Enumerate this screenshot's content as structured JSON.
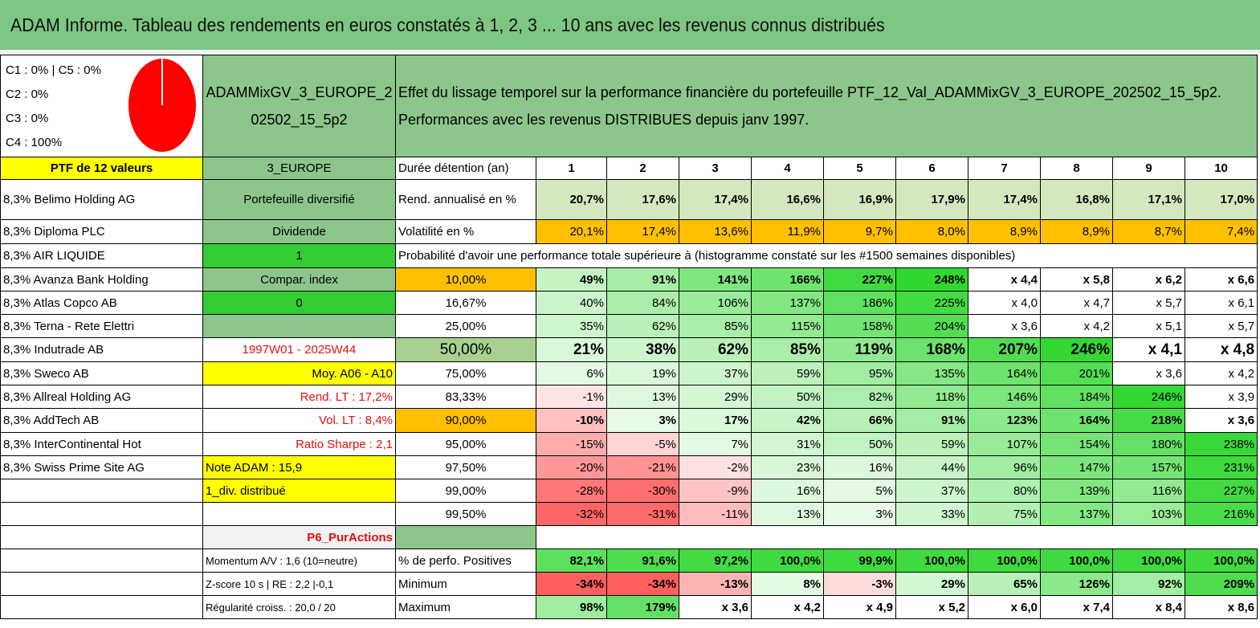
{
  "title": "ADAM Informe. Tableau des rendements en euros constatés à 1, 2, 3 ... 10 ans avec les revenus connus distribués",
  "levels": [
    "C1 : 0% | C5 : 0%",
    "C2 : 0%",
    "C3 : 0%",
    "C4 : 100%"
  ],
  "portfolio_name": "ADAMMixGV_3_EUROPE_202502_15_5p2",
  "description": "Effet du lissage temporel sur la performance financière du portefeuille PTF_12_Val_ADAMMixGV_3_EUROPE_202502_15_5p2. Performances avec les revenus DISTRIBUES depuis janv 1997.",
  "ptf_header": "PTF de 12 valeurs",
  "zone": "3_EUROPE",
  "duration_label": "Durée détention (an)",
  "years": [
    "1",
    "2",
    "3",
    "4",
    "5",
    "6",
    "7",
    "8",
    "9",
    "10"
  ],
  "holdings": [
    "8,3% Belimo Holding AG",
    "8,3% Diploma PLC",
    "8,3% AIR LIQUIDE",
    "8,3% Avanza Bank Holding",
    "8,3% Atlas Copco AB",
    "8,3% Terna - Rete Elettri",
    "8,3% Indutrade AB",
    "8,3% Sweco AB",
    "8,3% Allreal Holding AG",
    "8,3% AddTech AB",
    "8,3% InterContinental Hot",
    "8,3% Swiss Prime Site AG"
  ],
  "info": {
    "diversifie": "Portefeuille diversifié",
    "dividende": "Dividende",
    "one": "1",
    "compar": "Compar. index",
    "zero": "0",
    "blank": "",
    "period": "1997W01 - 2025W44",
    "moy": "Moy. A06 - A10",
    "rend_lt": "Rend. LT : 17,2%",
    "vol_lt": "Vol. LT : 8,4%",
    "sharpe": "Ratio Sharpe : 2,1",
    "note": "Note ADAM : 15,9",
    "div": "1_div. distribué",
    "p6": "P6_PurActions",
    "momentum": "Momentum A/V : 1,6 (10=neutre)",
    "zscore": "Z-score 10 s | RE : 2,2 |-0,1",
    "regularite": "Régularité croiss. : 20,0 / 20"
  },
  "rend_label": "Rend. annualisé en %",
  "rend": [
    "20,7%",
    "17,6%",
    "17,4%",
    "16,6%",
    "16,9%",
    "17,9%",
    "17,4%",
    "16,8%",
    "17,1%",
    "17,0%"
  ],
  "vol_label": "Volatilité en %",
  "vol": [
    "20,1%",
    "17,4%",
    "13,6%",
    "11,9%",
    "9,7%",
    "8,0%",
    "8,9%",
    "8,9%",
    "8,7%",
    "7,4%"
  ],
  "prob_label": "Probabilité d'avoir une performance totale supérieure à (histogramme constaté sur les #1500 semaines disponibles)",
  "prob_rows": [
    {
      "p": "10,00%",
      "v": [
        "49%",
        "91%",
        "141%",
        "166%",
        "227%",
        "248%",
        "x 4,4",
        "x 5,8",
        "x 6,2",
        "x 6,6"
      ]
    },
    {
      "p": "16,67%",
      "v": [
        "40%",
        "84%",
        "106%",
        "137%",
        "186%",
        "225%",
        "x 4,0",
        "x 4,7",
        "x 5,7",
        "x 6,1"
      ]
    },
    {
      "p": "25,00%",
      "v": [
        "35%",
        "62%",
        "85%",
        "115%",
        "158%",
        "204%",
        "x 3,6",
        "x 4,2",
        "x 5,1",
        "x 5,7"
      ]
    },
    {
      "p": "50,00%",
      "v": [
        "21%",
        "38%",
        "62%",
        "85%",
        "119%",
        "168%",
        "207%",
        "246%",
        "x 4,1",
        "x 4,8"
      ]
    },
    {
      "p": "75,00%",
      "v": [
        "6%",
        "19%",
        "37%",
        "59%",
        "95%",
        "135%",
        "164%",
        "201%",
        "x 3,6",
        "x 4,2"
      ]
    },
    {
      "p": "83,33%",
      "v": [
        "-1%",
        "13%",
        "29%",
        "50%",
        "82%",
        "118%",
        "146%",
        "184%",
        "246%",
        "x 3,9"
      ]
    },
    {
      "p": "90,00%",
      "v": [
        "-10%",
        "3%",
        "17%",
        "42%",
        "66%",
        "91%",
        "123%",
        "164%",
        "218%",
        "x 3,6"
      ]
    },
    {
      "p": "95,00%",
      "v": [
        "-15%",
        "-5%",
        "7%",
        "31%",
        "50%",
        "59%",
        "107%",
        "154%",
        "180%",
        "238%"
      ]
    },
    {
      "p": "97,50%",
      "v": [
        "-20%",
        "-21%",
        "-2%",
        "23%",
        "16%",
        "44%",
        "96%",
        "147%",
        "157%",
        "231%"
      ]
    },
    {
      "p": "99,00%",
      "v": [
        "-28%",
        "-30%",
        "-9%",
        "16%",
        "5%",
        "37%",
        "80%",
        "139%",
        "116%",
        "227%"
      ]
    },
    {
      "p": "99,50%",
      "v": [
        "-32%",
        "-31%",
        "-11%",
        "13%",
        "3%",
        "33%",
        "75%",
        "137%",
        "103%",
        "216%"
      ]
    }
  ],
  "pos_label": "% de perfo. Positives",
  "pos": [
    "82,1%",
    "91,6%",
    "97,2%",
    "100,0%",
    "99,9%",
    "100,0%",
    "100,0%",
    "100,0%",
    "100,0%",
    "100,0%"
  ],
  "min_label": "Minimum",
  "min": [
    "-34%",
    "-34%",
    "-13%",
    "8%",
    "-3%",
    "29%",
    "65%",
    "126%",
    "92%",
    "209%"
  ],
  "max_label": "Maximum",
  "max": [
    "98%",
    "179%",
    "x 3,6",
    "x 4,2",
    "x 4,9",
    "x 5,2",
    "x 6,0",
    "x 7,4",
    "x 8,4",
    "x 8,6"
  ],
  "colors": {
    "banner": "#7dc683",
    "green_mid": "#8cc68b",
    "yellow": "#ffff00",
    "orange": "#ffc000",
    "bright_green": "#33cc33",
    "dark_red": "#e01010"
  }
}
